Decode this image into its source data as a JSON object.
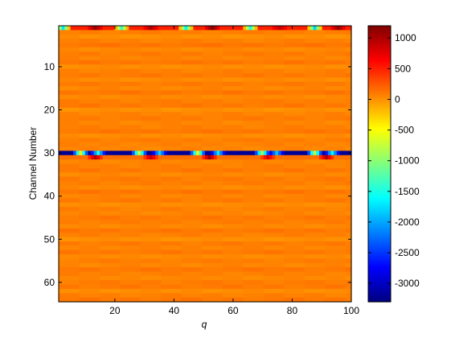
{
  "chart_data": [
    {
      "type": "heatmap",
      "title": "",
      "xlabel": "q",
      "ylabel": "Channel Number",
      "x": {
        "min": 1,
        "max": 100,
        "count": 100
      },
      "y": {
        "min": 1,
        "max": 64,
        "count": 64,
        "direction": "reversed"
      },
      "xlim": [
        1,
        100
      ],
      "ylim": [
        64,
        1
      ],
      "xticks": [
        20,
        40,
        60,
        80,
        100
      ],
      "xtick_labels": [
        "20",
        "40",
        "60",
        "80",
        "100"
      ],
      "yticks": [
        10,
        20,
        30,
        40,
        50,
        60
      ],
      "ytick_labels": [
        "10",
        "20",
        "30",
        "40",
        "50",
        "60"
      ],
      "colormap": "jet",
      "clim": [
        -3300,
        1200
      ],
      "grid": false,
      "baseline_value": 50,
      "row_offsets": [
        0,
        30,
        -40,
        20,
        70,
        -10,
        40,
        10,
        60,
        -30,
        20,
        50,
        -20,
        40,
        0,
        60,
        -10,
        30,
        50,
        -40,
        10,
        40,
        0,
        20,
        60,
        -30,
        30,
        10,
        0,
        0,
        0,
        0,
        20,
        50,
        -10,
        40,
        30,
        -20,
        60,
        10,
        40,
        -30,
        20,
        0,
        50,
        30,
        -10,
        60,
        20,
        -40,
        40,
        10,
        50,
        -20,
        30,
        0,
        60,
        20,
        -10,
        40,
        50,
        -30,
        20,
        60
      ],
      "highlight_rows": [
        {
          "channel": 1,
          "base": 500,
          "peaks": [
            {
              "q": 2,
              "value": -1700
            },
            {
              "q": 13,
              "value": 1100
            },
            {
              "q": 22,
              "value": -1400
            },
            {
              "q": 32,
              "value": 1000
            },
            {
              "q": 44,
              "value": -1600
            },
            {
              "q": 53,
              "value": 1200
            },
            {
              "q": 66,
              "value": -1500
            },
            {
              "q": 76,
              "value": 900
            },
            {
              "q": 88,
              "value": -1800
            },
            {
              "q": 96,
              "value": 1100
            }
          ]
        },
        {
          "channel": 30,
          "base": -3200,
          "peaks": [
            {
              "q": 8,
              "value": -600
            },
            {
              "q": 14,
              "value": -1500
            },
            {
              "q": 28,
              "value": -700
            },
            {
              "q": 35,
              "value": -1800
            },
            {
              "q": 48,
              "value": -600
            },
            {
              "q": 55,
              "value": -1700
            },
            {
              "q": 70,
              "value": -900
            },
            {
              "q": 75,
              "value": -1900
            },
            {
              "q": 88,
              "value": -800
            },
            {
              "q": 94,
              "value": -1600
            }
          ]
        },
        {
          "channel": 31,
          "base": 150,
          "peaks": [
            {
              "q": 13,
              "value": 1000
            },
            {
              "q": 32,
              "value": 900
            },
            {
              "q": 52,
              "value": 1100
            },
            {
              "q": 72,
              "value": 800
            },
            {
              "q": 92,
              "value": 1000
            }
          ]
        }
      ]
    },
    {
      "type": "colorbar",
      "range": [
        -3300,
        1200
      ],
      "ticks": [
        1000,
        500,
        0,
        -500,
        -1000,
        -1500,
        -2000,
        -2500,
        -3000
      ],
      "tick_labels": [
        "1000",
        "500",
        "0",
        "-500",
        "-1000",
        "-1500",
        "-2000",
        "-2500",
        "-3000"
      ]
    }
  ]
}
